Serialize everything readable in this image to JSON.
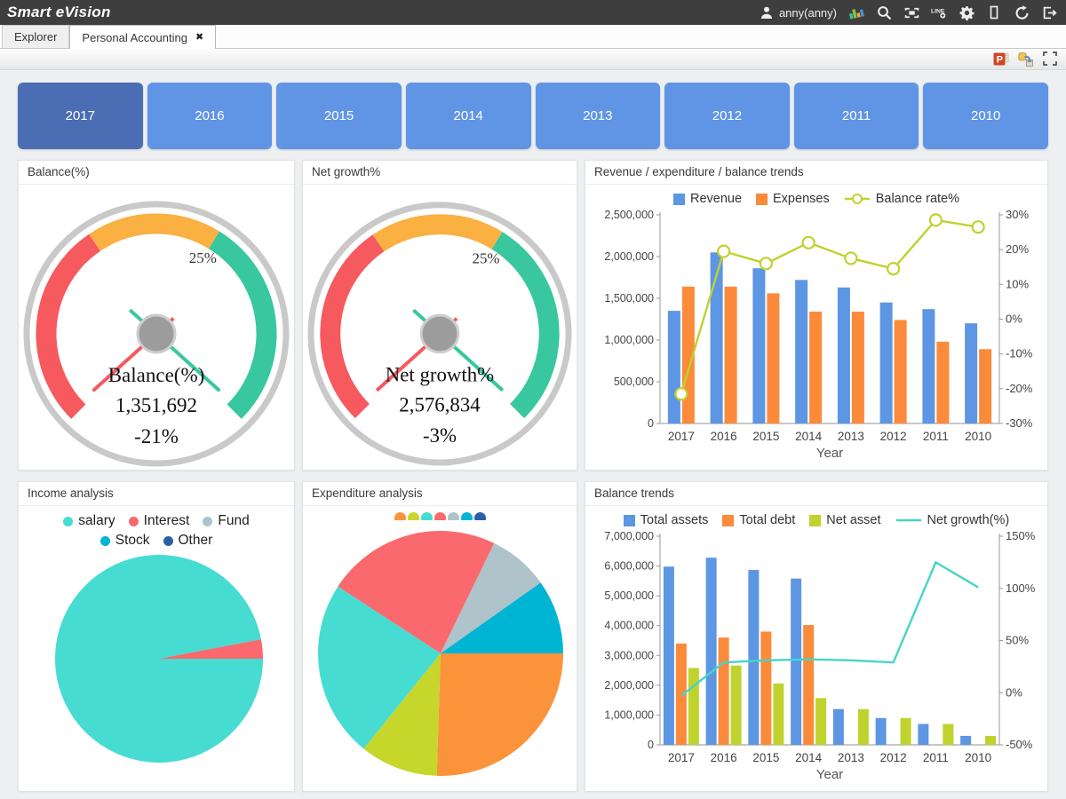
{
  "header": {
    "app_title": "Smart eVision",
    "user_label": "anny(anny)",
    "icons": [
      "user-icon",
      "color-chart-icon",
      "search-icon",
      "screen-icon",
      "line-share-icon",
      "settings-gear-icon",
      "portrait-mode-icon",
      "refresh-icon",
      "exit-icon"
    ],
    "bar_color": "#3e3e3e"
  },
  "tabs": [
    {
      "label": "Explorer",
      "active": false
    },
    {
      "label": "Personal Accounting",
      "active": true,
      "closable": true
    }
  ],
  "toolbar_icons": [
    "powerpoint-export-icon",
    "export-data-icon",
    "fullscreen-icon"
  ],
  "year_buttons": {
    "selected": "2017",
    "years": [
      "2017",
      "2016",
      "2015",
      "2014",
      "2013",
      "2012",
      "2011",
      "2010"
    ],
    "selected_color": "#4a6db4",
    "button_color": "#6095e6"
  },
  "panels": {
    "balance_gauge": {
      "title": "Balance(%)"
    },
    "net_growth_gauge": {
      "title": "Net growth%"
    },
    "revenue_trends": {
      "title": "Revenue / expenditure / balance trends"
    },
    "income_analysis": {
      "title": "Income analysis"
    },
    "expenditure_analysis": {
      "title": "Expenditure analysis"
    },
    "balance_trends": {
      "title": "Balance trends"
    }
  },
  "chart_data": [
    {
      "type": "gauge",
      "panel": "balance_gauge",
      "label": "Balance(%)",
      "value": "1,351,692",
      "percent": "-21%",
      "scale_label": "25%",
      "segments": [
        {
          "color": "#f6595e",
          "fraction": 0.374
        },
        {
          "color": "#fbb042",
          "fraction": 0.243
        },
        {
          "color": "#38c79f",
          "fraction": 0.383
        }
      ],
      "ring_color": "#c9c9c9",
      "hub_color": "#9c9c9c",
      "needles": [
        {
          "color": "#f6595e",
          "angle_deg": 138,
          "tail": 26
        },
        {
          "color": "#38c79f",
          "angle_deg": 42,
          "tail": 40
        }
      ]
    },
    {
      "type": "gauge",
      "panel": "net_growth_gauge",
      "label": "Net growth%",
      "value": "2,576,834",
      "percent": "-3%",
      "scale_label": "25%",
      "segments": [
        {
          "color": "#f6595e",
          "fraction": 0.374
        },
        {
          "color": "#fbb042",
          "fraction": 0.243
        },
        {
          "color": "#38c79f",
          "fraction": 0.383
        }
      ],
      "ring_color": "#c9c9c9",
      "hub_color": "#9c9c9c",
      "needles": [
        {
          "color": "#f6595e",
          "angle_deg": 138,
          "tail": 26
        },
        {
          "color": "#38c79f",
          "angle_deg": 42,
          "tail": 40
        }
      ]
    },
    {
      "type": "bar+line",
      "panel": "revenue_trends",
      "categories": [
        "2017",
        "2016",
        "2015",
        "2014",
        "2013",
        "2012",
        "2011",
        "2010"
      ],
      "xlabel": "Year",
      "left_axis": {
        "min": 0,
        "max": 2500000,
        "step": 500000
      },
      "right_axis": {
        "min": -30,
        "max": 30,
        "step": 10,
        "suffix": "%"
      },
      "legend_position": "top",
      "grid": false,
      "series": [
        {
          "name": "Revenue",
          "type": "bar",
          "color": "#5d96e2",
          "values": [
            1350000,
            2050000,
            1860000,
            1720000,
            1630000,
            1450000,
            1370000,
            1200000
          ]
        },
        {
          "name": "Expenses",
          "type": "bar",
          "color": "#fb8b3a",
          "values": [
            1640000,
            1640000,
            1560000,
            1340000,
            1340000,
            1240000,
            980000,
            890000
          ]
        },
        {
          "name": "Balance rate%",
          "type": "line",
          "axis": "right",
          "color": "#bfd22e",
          "markers": true,
          "values": [
            -21.5,
            19.5,
            16,
            22,
            17.5,
            14.5,
            28.5,
            26.5
          ]
        }
      ]
    },
    {
      "type": "pie",
      "panel": "income_analysis",
      "legend_labels_visible": true,
      "start_angle_deg": 0,
      "slices": [
        {
          "label": "salary",
          "color": "#47dcd2",
          "value": 97
        },
        {
          "label": "Interest",
          "color": "#f9696e",
          "value": 3
        },
        {
          "label": "Fund",
          "color": "#aec3ca",
          "value": 0
        },
        {
          "label": "Stock",
          "color": "#00b5d4",
          "value": 0
        },
        {
          "label": "Other",
          "color": "#2d5ea8",
          "value": 0
        }
      ]
    },
    {
      "type": "pie",
      "panel": "expenditure_analysis",
      "legend_labels_visible": false,
      "start_angle_deg": 0,
      "slices": [
        {
          "label": "",
          "color": "#fb933a",
          "value": 25.5
        },
        {
          "label": "",
          "color": "#c6d62b",
          "value": 10.3
        },
        {
          "label": "",
          "color": "#47dcd2",
          "value": 23.4
        },
        {
          "label": "",
          "color": "#f9696e",
          "value": 23
        },
        {
          "label": "",
          "color": "#aec3ca",
          "value": 8
        },
        {
          "label": "",
          "color": "#00b5d4",
          "value": 9.8
        },
        {
          "label": "",
          "color": "#2d5ea8",
          "value": 0
        }
      ]
    },
    {
      "type": "bar+line",
      "panel": "balance_trends",
      "categories": [
        "2017",
        "2016",
        "2015",
        "2014",
        "2013",
        "2012",
        "2011",
        "2010"
      ],
      "xlabel": "Year",
      "left_axis": {
        "min": 0,
        "max": 7000000,
        "step": 1000000
      },
      "right_axis": {
        "min": -50,
        "max": 150,
        "step": 50,
        "suffix": "%"
      },
      "legend_position": "top",
      "grid": false,
      "series": [
        {
          "name": "Total assets",
          "type": "bar",
          "color": "#5d96e2",
          "values": [
            5980000,
            6280000,
            5870000,
            5580000,
            1200000,
            900000,
            700000,
            300000
          ]
        },
        {
          "name": "Total debt",
          "type": "bar",
          "color": "#fb8b3a",
          "values": [
            3400000,
            3600000,
            3800000,
            4020000,
            0,
            0,
            0,
            0
          ]
        },
        {
          "name": "Net asset",
          "type": "bar",
          "color": "#bfd22e",
          "values": [
            2580000,
            2660000,
            2060000,
            1570000,
            1200000,
            900000,
            700000,
            300000
          ]
        },
        {
          "name": "Net growth(%)",
          "type": "line",
          "axis": "right",
          "color": "#45d4c8",
          "markers": false,
          "values": [
            -3,
            29,
            31,
            32,
            31,
            29,
            125,
            101
          ]
        }
      ]
    }
  ]
}
